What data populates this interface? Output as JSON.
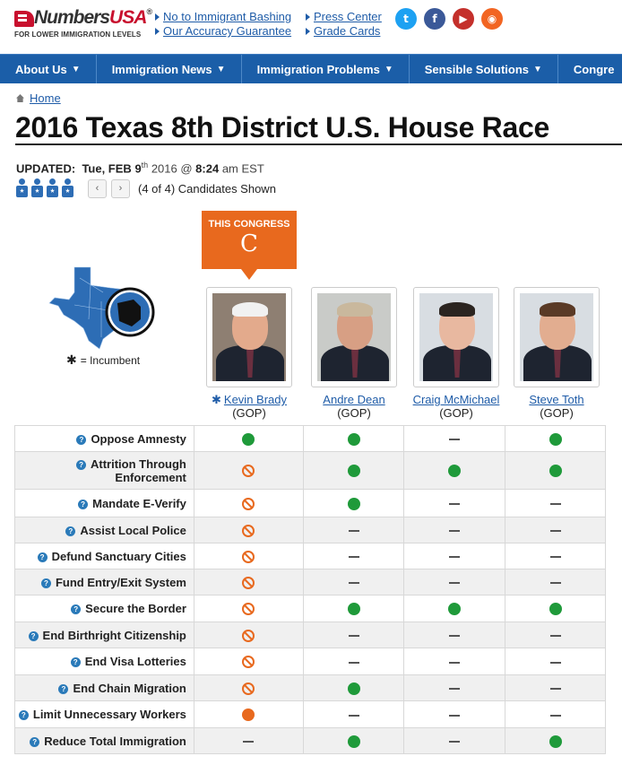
{
  "header": {
    "logo_name_a": "Numbers",
    "logo_name_b": "USA",
    "logo_reg": "®",
    "logo_tagline": "FOR LOWER IMMIGRATION LEVELS",
    "links_col1": [
      "No to Immigrant Bashing",
      "Our Accuracy Guarantee"
    ],
    "links_col2": [
      "Press Center",
      "Grade Cards"
    ],
    "social": [
      {
        "name": "twitter-icon",
        "glyph": "t",
        "color": "#1da1f2"
      },
      {
        "name": "facebook-icon",
        "glyph": "f",
        "color": "#3b5998"
      },
      {
        "name": "youtube-icon",
        "glyph": "▶",
        "color": "#c4302b"
      },
      {
        "name": "rss-icon",
        "glyph": "◉",
        "color": "#f26522"
      }
    ]
  },
  "nav": [
    "About Us",
    "Immigration News",
    "Immigration Problems",
    "Sensible Solutions",
    "Congre"
  ],
  "breadcrumb": "Home",
  "title": "2016 Texas 8th District U.S. House Race",
  "updated": {
    "label": "UPDATED:",
    "day": "Tue, FEB",
    "date_num": "9",
    "date_sup": "th",
    "year": "2016 @",
    "time": "8:24",
    "tz": "am EST"
  },
  "pager": {
    "prev": "‹",
    "next": "›",
    "shown": "(4 of 4) Candidates Shown"
  },
  "grade_badge": {
    "label": "THIS CONGRESS",
    "grade": "C"
  },
  "incumbent_note": "= Incumbent",
  "candidates": [
    {
      "name": "Kevin Brady",
      "party": "(GOP)",
      "incumbent": true
    },
    {
      "name": "Andre Dean",
      "party": "(GOP)",
      "incumbent": false
    },
    {
      "name": "Craig McMichael",
      "party": "(GOP)",
      "incumbent": false
    },
    {
      "name": "Steve Toth",
      "party": "(GOP)",
      "incumbent": false
    }
  ],
  "issues": [
    {
      "label": "Oppose Amnesty",
      "marks": [
        "good",
        "good",
        "none",
        "good"
      ]
    },
    {
      "label": "Attrition Through Enforcement",
      "marks": [
        "bad",
        "good",
        "good",
        "good"
      ]
    },
    {
      "label": "Mandate E-Verify",
      "marks": [
        "bad",
        "good",
        "none",
        "none"
      ]
    },
    {
      "label": "Assist Local Police",
      "marks": [
        "bad",
        "none",
        "none",
        "none"
      ]
    },
    {
      "label": "Defund Sanctuary Cities",
      "marks": [
        "bad",
        "none",
        "none",
        "none"
      ]
    },
    {
      "label": "Fund Entry/Exit System",
      "marks": [
        "bad",
        "none",
        "none",
        "none"
      ]
    },
    {
      "label": "Secure the Border",
      "marks": [
        "bad",
        "good",
        "good",
        "good"
      ]
    },
    {
      "label": "End Birthright Citizenship",
      "marks": [
        "bad",
        "none",
        "none",
        "none"
      ]
    },
    {
      "label": "End Visa Lotteries",
      "marks": [
        "bad",
        "none",
        "none",
        "none"
      ]
    },
    {
      "label": "End Chain Migration",
      "marks": [
        "bad",
        "good",
        "none",
        "none"
      ]
    },
    {
      "label": "Limit Unnecessary Workers",
      "marks": [
        "dot",
        "none",
        "none",
        "none"
      ]
    },
    {
      "label": "Reduce Total Immigration",
      "marks": [
        "none",
        "good",
        "none",
        "good"
      ]
    }
  ]
}
